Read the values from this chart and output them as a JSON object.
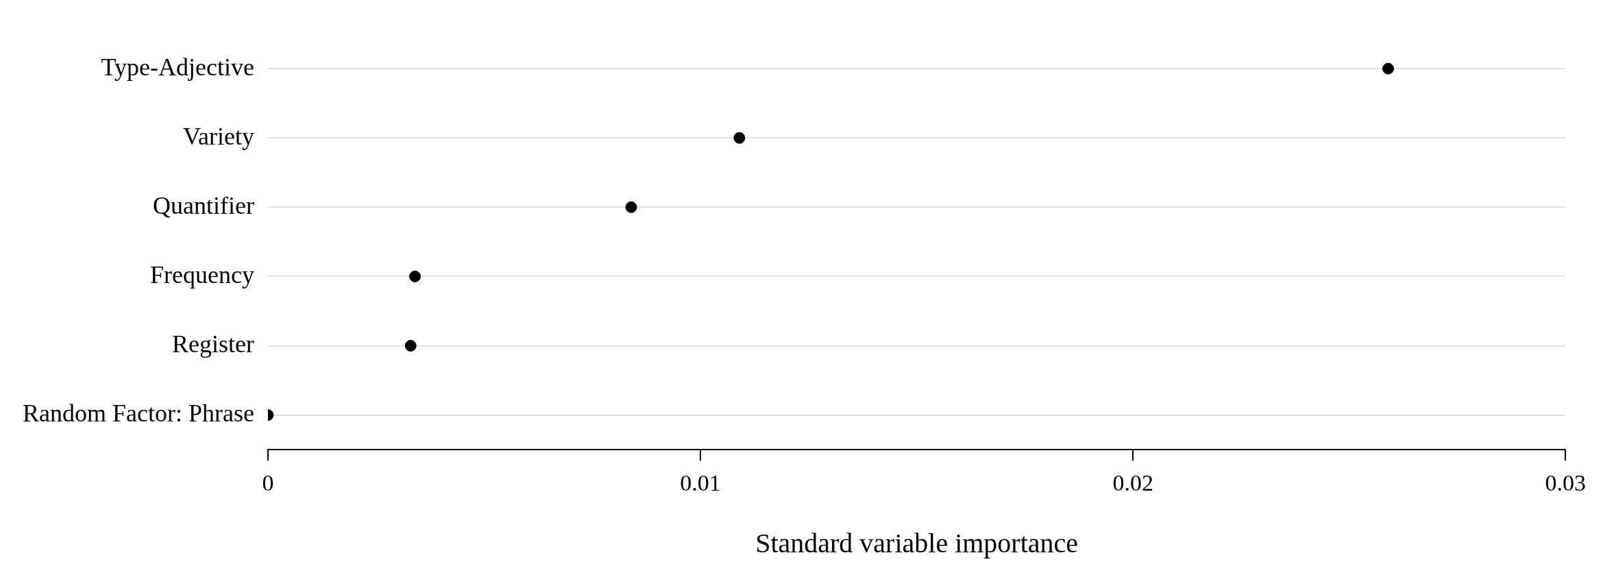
{
  "chart_data": {
    "type": "scatter",
    "orientation": "horizontal",
    "xlabel": "Standard variable importance",
    "categories": [
      "Type-Adjective",
      "Variety",
      "Quantifier",
      "Frequency",
      "Register",
      "Random Factor: Phrase"
    ],
    "values": [
      0.0259,
      0.0109,
      0.0084,
      0.0034,
      0.0033,
      0
    ],
    "color": "#000000",
    "marker": "circle",
    "grid": "y",
    "legend": false,
    "xlim": [
      0,
      0.03
    ],
    "xticks": [
      0,
      0.01,
      0.02,
      0.03
    ]
  }
}
